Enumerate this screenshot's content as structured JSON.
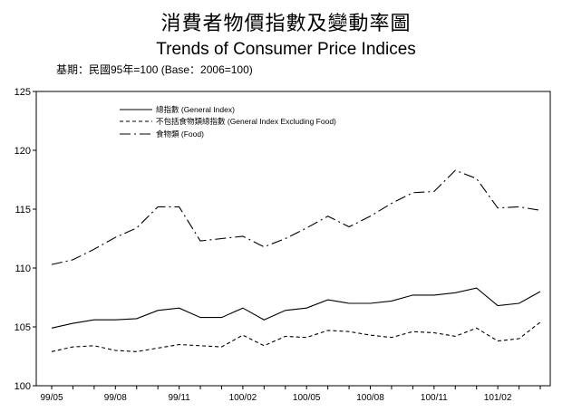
{
  "title_zh": "消費者物價指數及變動率圖",
  "title_en": "Trends of Consumer Price Indices",
  "base_note": "基期：民國95年=100 (Base：2006=100)",
  "chart_data": {
    "type": "line",
    "ylim": [
      100,
      125
    ],
    "yticks": [
      100,
      105,
      110,
      115,
      120,
      125
    ],
    "x": [
      "99/05",
      "99/06",
      "99/07",
      "99/08",
      "99/09",
      "99/10",
      "99/11",
      "99/12",
      "100/01",
      "100/02",
      "100/03",
      "100/04",
      "100/05",
      "100/06",
      "100/07",
      "100/08",
      "100/09",
      "100/10",
      "100/11",
      "100/12",
      "101/01",
      "101/02",
      "101/03",
      "101/04"
    ],
    "xtick_labels": [
      "99/05",
      "99/08",
      "99/11",
      "100/02",
      "100/05",
      "100/08",
      "100/11",
      "101/02"
    ],
    "legend": "top-left",
    "series": [
      {
        "name": "總指數 (General Index)",
        "style": "solid",
        "values": [
          104.9,
          105.3,
          105.6,
          105.6,
          105.7,
          106.4,
          106.6,
          105.8,
          105.8,
          106.6,
          105.6,
          106.4,
          106.6,
          107.3,
          107.0,
          107.0,
          107.2,
          107.7,
          107.7,
          107.9,
          108.3,
          106.8,
          107.0,
          108.0
        ]
      },
      {
        "name": "不包括食物類總指數 (General Index Excluding Food)",
        "style": "dashed",
        "values": [
          102.9,
          103.3,
          103.4,
          103.0,
          102.9,
          103.2,
          103.5,
          103.4,
          103.3,
          104.3,
          103.4,
          104.2,
          104.1,
          104.7,
          104.6,
          104.3,
          104.1,
          104.6,
          104.5,
          104.2,
          104.9,
          103.8,
          104.0,
          105.4
        ]
      },
      {
        "name": "食物類 (Food)",
        "style": "dashdot",
        "values": [
          110.3,
          110.7,
          111.6,
          112.6,
          113.4,
          115.2,
          115.2,
          112.3,
          112.5,
          112.7,
          111.8,
          112.5,
          113.4,
          114.4,
          113.5,
          114.4,
          115.5,
          116.4,
          116.5,
          118.3,
          117.6,
          115.1,
          115.2,
          114.9
        ]
      }
    ]
  }
}
